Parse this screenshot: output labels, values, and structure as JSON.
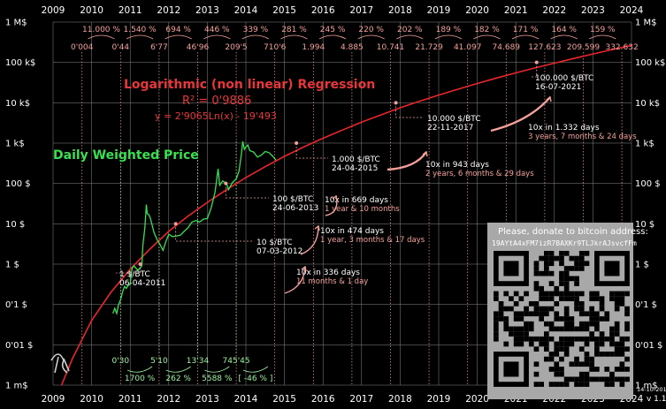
{
  "chart_data": {
    "type": "line",
    "title": "Logarithmic (non linear) Regression",
    "r_squared": "R² = 0'9886",
    "equation": "y = 2'9065Ln(x) - 19'493",
    "series_label": "Daily Weighted Price",
    "y_scale": "log",
    "ylim": [
      0.001,
      1000000
    ],
    "xlim": [
      2009,
      2024
    ],
    "x_ticks": [
      "2009",
      "2010",
      "2011",
      "2012",
      "2013",
      "2014",
      "2015",
      "2016",
      "2017",
      "2018",
      "2019",
      "2020",
      "2021",
      "2022",
      "2023",
      "2024"
    ],
    "y_ticks": [
      {
        "v": 1000000,
        "label": "1 M$"
      },
      {
        "v": 100000,
        "label": "100 k$"
      },
      {
        "v": 10000,
        "label": "10 k$"
      },
      {
        "v": 1000,
        "label": "1 k$"
      },
      {
        "v": 100,
        "label": "100 $"
      },
      {
        "v": 10,
        "label": "10 $"
      },
      {
        "v": 1,
        "label": "1 $"
      },
      {
        "v": 0.1,
        "label": "0'1 $"
      },
      {
        "v": 0.01,
        "label": "0'01 $"
      },
      {
        "v": 0.001,
        "label": "1 m$"
      }
    ],
    "regression": {
      "name": "Logarithmic Regression",
      "color": "#e8262c",
      "points": [
        [
          2009.22,
          0.001
        ],
        [
          2009.5,
          0.0045
        ],
        [
          2010,
          0.04
        ],
        [
          2010.5,
          0.2
        ],
        [
          2011,
          0.75
        ],
        [
          2011.5,
          2.3
        ],
        [
          2012,
          6.5
        ],
        [
          2012.5,
          15.5
        ],
        [
          2013,
          34
        ],
        [
          2013.5,
          70
        ],
        [
          2014,
          140
        ],
        [
          2014.5,
          260
        ],
        [
          2015,
          470
        ],
        [
          2015.5,
          800
        ],
        [
          2016,
          1320
        ],
        [
          2016.5,
          2100
        ],
        [
          2017,
          3300
        ],
        [
          2017.5,
          5000
        ],
        [
          2018,
          7500
        ],
        [
          2018.5,
          10900
        ],
        [
          2019,
          15500
        ],
        [
          2019.5,
          21700
        ],
        [
          2020,
          30000
        ],
        [
          2020.5,
          41000
        ],
        [
          2021,
          55000
        ],
        [
          2021.5,
          73000
        ],
        [
          2022,
          96000
        ],
        [
          2022.5,
          125000
        ],
        [
          2023,
          162000
        ],
        [
          2023.5,
          208000
        ],
        [
          2024,
          265000
        ]
      ]
    },
    "price": {
      "name": "Daily Weighted Price",
      "color": "#39e050",
      "points": [
        [
          2010.55,
          0.06
        ],
        [
          2010.6,
          0.08
        ],
        [
          2010.65,
          0.06
        ],
        [
          2010.7,
          0.1
        ],
        [
          2010.75,
          0.13
        ],
        [
          2010.8,
          0.2
        ],
        [
          2010.85,
          0.28
        ],
        [
          2010.9,
          0.25
        ],
        [
          2010.95,
          0.3
        ],
        [
          2011.0,
          0.32
        ],
        [
          2011.05,
          0.8
        ],
        [
          2011.1,
          0.9
        ],
        [
          2011.2,
          0.7
        ],
        [
          2011.3,
          0.9
        ],
        [
          2011.33,
          3.0
        ],
        [
          2011.38,
          8.0
        ],
        [
          2011.42,
          30.0
        ],
        [
          2011.44,
          18.0
        ],
        [
          2011.48,
          17.0
        ],
        [
          2011.52,
          14.0
        ],
        [
          2011.56,
          10.0
        ],
        [
          2011.62,
          6.0
        ],
        [
          2011.7,
          4.0
        ],
        [
          2011.78,
          3.0
        ],
        [
          2011.85,
          2.2
        ],
        [
          2011.92,
          3.5
        ],
        [
          2012.0,
          5.5
        ],
        [
          2012.1,
          4.8
        ],
        [
          2012.2,
          5.0
        ],
        [
          2012.3,
          5.2
        ],
        [
          2012.4,
          6.5
        ],
        [
          2012.5,
          8.0
        ],
        [
          2012.6,
          11.0
        ],
        [
          2012.7,
          12.0
        ],
        [
          2012.8,
          11.0
        ],
        [
          2012.9,
          13.0
        ],
        [
          2013.0,
          13.5
        ],
        [
          2013.1,
          25.0
        ],
        [
          2013.2,
          60.0
        ],
        [
          2013.28,
          230.0
        ],
        [
          2013.32,
          90.0
        ],
        [
          2013.4,
          115.0
        ],
        [
          2013.5,
          100.0
        ],
        [
          2013.55,
          70.0
        ],
        [
          2013.65,
          105.0
        ],
        [
          2013.75,
          130.0
        ],
        [
          2013.82,
          200.0
        ],
        [
          2013.88,
          500.0
        ],
        [
          2013.92,
          1100.0
        ],
        [
          2013.96,
          700.0
        ],
        [
          2014.0,
          800.0
        ],
        [
          2014.05,
          900.0
        ],
        [
          2014.1,
          650.0
        ],
        [
          2014.2,
          600.0
        ],
        [
          2014.3,
          450.0
        ],
        [
          2014.4,
          500.0
        ],
        [
          2014.5,
          620.0
        ],
        [
          2014.6,
          580.0
        ],
        [
          2014.7,
          470.0
        ],
        [
          2014.78,
          380.0
        ]
      ]
    }
  },
  "top_multipliers": [
    "11.000 %",
    "1.540 %",
    "694 %",
    "446 %",
    "339 %",
    "281 %",
    "245 %",
    "220 %",
    "202 %",
    "189 %",
    "182 %",
    "171 %",
    "164 %",
    "159 %"
  ],
  "top_values": [
    "0'004",
    "0'44",
    "6'77",
    "46'96",
    "209'5",
    "710'6",
    "1.994",
    "4.885",
    "10.741",
    "21.729",
    "41.097",
    "74.689",
    "127.623",
    "209.599",
    "332.632"
  ],
  "milestones": [
    {
      "price": "1 $/BTC",
      "date": "06-04-2011"
    },
    {
      "price": "10 $/BTC",
      "date": "07-03-2012"
    },
    {
      "price": "100 $/BTC",
      "date": "24-06-2013"
    },
    {
      "price": "1.000 $/BTC",
      "date": "24-04-2015"
    },
    {
      "price": "10.000 $/BTC",
      "date": "22-11-2017"
    },
    {
      "price": "100.000 $/BTC",
      "date": "16-07-2021"
    }
  ],
  "durations": [
    {
      "title": "10x in 336 days",
      "sub": "11 months & 1 day"
    },
    {
      "title": "10x in 474 days",
      "sub": "1 year, 3 months & 17 days"
    },
    {
      "title": "10x in 669 days",
      "sub": "1 year & 10 months"
    },
    {
      "title": "10x in 943 days",
      "sub": "2 years, 6 months & 29 days"
    },
    {
      "title": "10x  in 1.332 days",
      "sub": "3 years, 7 months & 24 days"
    }
  ],
  "bottom_values": [
    "0'30",
    "5'10",
    "13'34",
    "745'45"
  ],
  "bottom_pcts": [
    "1700 %",
    "262 %",
    "5588 %",
    "[ -46 % ]"
  ],
  "donate": {
    "title": "Please, donate to bitcoin address:",
    "address": "19AYtA4xFM7izR7BAXKr9TLJkrAJsvcfFm"
  },
  "version": {
    "date": "14-10-2014",
    "num": "v 1.1"
  },
  "colors": {
    "regression": "#e8262c",
    "price": "#39e050",
    "pink": "#f4a09a",
    "grid": "#9a9a9a"
  }
}
